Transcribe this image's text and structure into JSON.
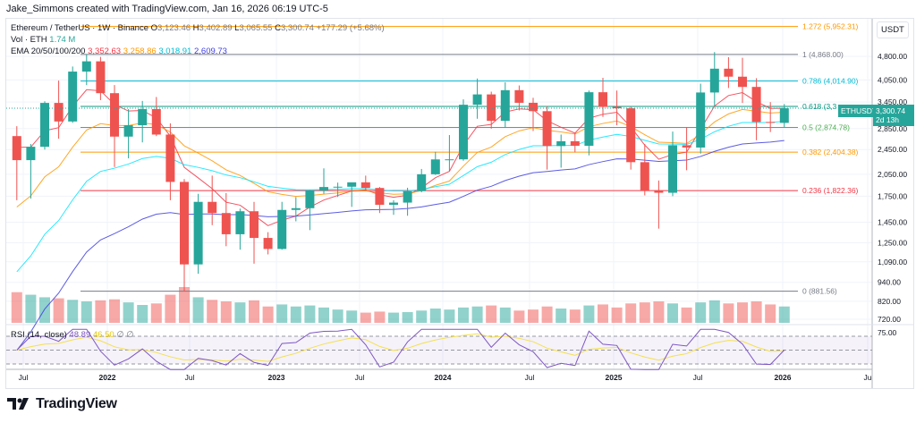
{
  "credit": "Jake_Simmons created with TradingView.com, Jan 16, 2026 06:19 UTC-5",
  "legend": {
    "symbol": "Ethereum / TetherUS · 1W · Binance",
    "o_label": "O",
    "o": "3,123.46",
    "h_label": "H",
    "h": "3,402.89",
    "l_label": "L",
    "l": "3,065.55",
    "c_label": "C",
    "c": "3,300.74",
    "change": "+177.29 (+5.68%)",
    "vol_label": "Vol · ETH",
    "vol": "1.74 M",
    "ema_label": "EMA 20/50/100/200",
    "ema_values": [
      "3,352.63",
      "3,258.86",
      "3,018.91",
      "2,609.73"
    ],
    "rsi_label": "RSI (14, close)",
    "rsi": "48.89",
    "rsi_ma": "46.50",
    "rsi_extra": "∅ ∅"
  },
  "colors": {
    "up": "#26a69a",
    "down": "#ef5350",
    "ema20": "#f23645",
    "ema50": "#ff9800",
    "ema100": "#00e5ff",
    "ema200": "#3f3fdf",
    "rsi": "#7e57c2",
    "rsi_ma": "#f4e04d"
  },
  "price_axis": {
    "currency": "USDT",
    "ticks": [
      "4,800.00",
      "4,050.00",
      "3,450.00",
      "2,850.00",
      "2,450.00",
      "2,050.00",
      "1,750.00",
      "1,450.00",
      "1,250.00",
      "1,090.00",
      "940.00",
      "820.00",
      "720.00"
    ],
    "rsi_tick": "75.00",
    "last_symbol": "ETHUSDT",
    "last_price": "3,300.74",
    "countdown": "2d 13h"
  },
  "time_axis": [
    "Jul",
    "2022",
    "Jul",
    "2023",
    "Jul",
    "2024",
    "Jul",
    "2025",
    "Jul",
    "2026",
    "Ju"
  ],
  "fib_levels": [
    {
      "label": "1.272 (5,952.31)",
      "price": 5952.31,
      "color": "#ff9800"
    },
    {
      "label": "1 (4,868.00)",
      "price": 4868.0,
      "color": "#787b86"
    },
    {
      "label": "0.786 (4,014.90)",
      "price": 4014.9,
      "color": "#00bcd4"
    },
    {
      "label": "0.618 (3,3",
      "price": 3345.18,
      "color": "#089981"
    },
    {
      "label": "0.5 (2,874.78)",
      "price": 2874.78,
      "color": "#4caf50"
    },
    {
      "label": "0.382 (2,404.38)",
      "price": 2404.38,
      "color": "#ff9800"
    },
    {
      "label": "0.236 (1,822.36)",
      "price": 1822.36,
      "color": "#f23645"
    },
    {
      "label": "0 (881.56)",
      "price": 881.56,
      "color": "#787b86"
    }
  ],
  "chart_data": {
    "type": "candlestick",
    "scale": "log",
    "x_start": "2021-06",
    "interval": "1M",
    "ohlc": [
      [
        2700,
        2900,
        1700,
        2270
      ],
      [
        2270,
        2550,
        1720,
        2500
      ],
      [
        2500,
        3470,
        2450,
        3430
      ],
      [
        3430,
        4030,
        2650,
        3000
      ],
      [
        3000,
        4460,
        2970,
        4300
      ],
      [
        4300,
        4870,
        3900,
        4630
      ],
      [
        4630,
        4780,
        3500,
        3680
      ],
      [
        3680,
        3900,
        2160,
        2690
      ],
      [
        2690,
        3280,
        2300,
        2920
      ],
      [
        2920,
        3480,
        2580,
        3280
      ],
      [
        3280,
        3580,
        2700,
        2730
      ],
      [
        2730,
        2960,
        1700,
        1940
      ],
      [
        1940,
        1980,
        880,
        1070
      ],
      [
        1070,
        1780,
        1000,
        1680
      ],
      [
        1680,
        2030,
        1420,
        1550
      ],
      [
        1550,
        1790,
        1220,
        1330
      ],
      [
        1330,
        1600,
        1190,
        1570
      ],
      [
        1570,
        1680,
        1075,
        1295
      ],
      [
        1295,
        1350,
        1150,
        1196
      ],
      [
        1196,
        1680,
        1190,
        1585
      ],
      [
        1585,
        1740,
        1460,
        1605
      ],
      [
        1605,
        1830,
        1370,
        1822
      ],
      [
        1822,
        2140,
        1780,
        1870
      ],
      [
        1870,
        1930,
        1740,
        1874
      ],
      [
        1874,
        1930,
        1620,
        1934
      ],
      [
        1934,
        2030,
        1820,
        1857
      ],
      [
        1857,
        1870,
        1550,
        1645
      ],
      [
        1645,
        1700,
        1530,
        1671
      ],
      [
        1671,
        1860,
        1520,
        1815
      ],
      [
        1815,
        2130,
        1800,
        2050
      ],
      [
        2050,
        2410,
        2040,
        2282
      ],
      [
        2282,
        2720,
        2100,
        2283
      ],
      [
        2283,
        3520,
        2260,
        3385
      ],
      [
        3385,
        4090,
        3060,
        3647
      ],
      [
        3647,
        3720,
        2850,
        3014
      ],
      [
        3014,
        3980,
        2870,
        3760
      ],
      [
        3760,
        3890,
        3250,
        3433
      ],
      [
        3433,
        3560,
        2800,
        3232
      ],
      [
        3232,
        3350,
        2120,
        2513
      ],
      [
        2513,
        2730,
        2150,
        2602
      ],
      [
        2602,
        2770,
        2400,
        2518
      ],
      [
        2518,
        3750,
        2350,
        3705
      ],
      [
        3705,
        4110,
        3100,
        3332
      ],
      [
        3332,
        3750,
        2920,
        3300
      ],
      [
        3300,
        3330,
        2120,
        2237
      ],
      [
        2237,
        2550,
        1760,
        1822
      ],
      [
        1822,
        1960,
        1385,
        1794
      ],
      [
        1794,
        2790,
        1750,
        2528
      ],
      [
        2528,
        2880,
        2110,
        2486
      ],
      [
        2486,
        3940,
        2380,
        3698
      ],
      [
        3698,
        4950,
        3350,
        4391
      ],
      [
        4391,
        4770,
        3820,
        4145
      ],
      [
        4145,
        4750,
        3430,
        3850
      ],
      [
        3850,
        4100,
        2620,
        2990
      ],
      [
        2990,
        3450,
        2780,
        2970
      ],
      [
        2970,
        3402.89,
        2880,
        3300.74
      ]
    ],
    "volume": [
      60,
      55,
      50,
      48,
      45,
      42,
      44,
      46,
      40,
      35,
      38,
      55,
      70,
      50,
      45,
      42,
      40,
      44,
      32,
      36,
      32,
      34,
      30,
      26,
      24,
      20,
      22,
      20,
      21,
      24,
      28,
      26,
      30,
      32,
      34,
      30,
      24,
      26,
      32,
      28,
      26,
      34,
      36,
      30,
      38,
      40,
      42,
      38,
      30,
      40,
      44,
      38,
      40,
      42,
      36,
      32
    ]
  }
}
